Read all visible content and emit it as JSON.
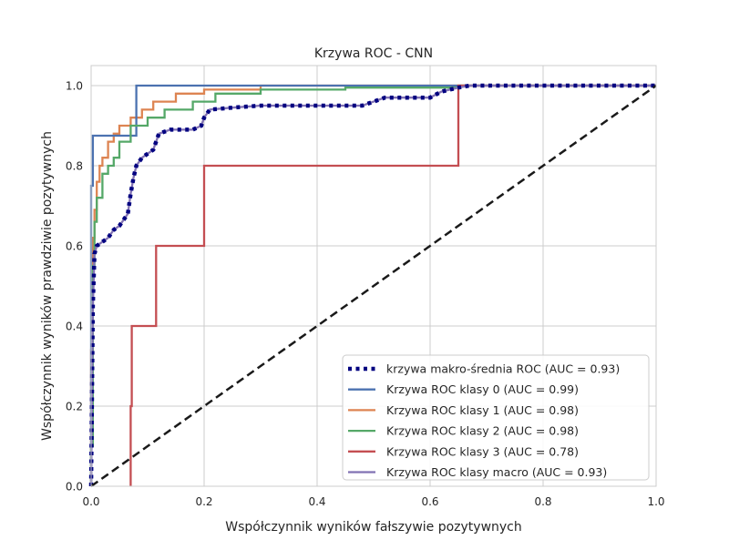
{
  "chart_data": {
    "type": "line",
    "title": "Krzywa ROC - CNN",
    "xlabel": "Współczynnik wyników fałszywie pozytywnych",
    "ylabel": "Współczynnik wyników prawdziwie pozytywnych",
    "xlim": [
      0.0,
      1.0
    ],
    "ylim": [
      0.0,
      1.05
    ],
    "xticks": [
      0.0,
      0.2,
      0.4,
      0.6,
      0.8,
      1.0
    ],
    "yticks": [
      0.0,
      0.2,
      0.4,
      0.6,
      0.8,
      1.0
    ],
    "xtick_labels": [
      "0.0",
      "0.2",
      "0.4",
      "0.6",
      "0.8",
      "1.0"
    ],
    "ytick_labels": [
      "0.0",
      "0.2",
      "0.4",
      "0.6",
      "0.8",
      "1.0"
    ],
    "grid": true,
    "legend_position": "lower-right",
    "series": [
      {
        "name": "krzywa makro-średnia ROC (AUC = 0.93)",
        "color": "#000080",
        "style": "dotted",
        "x": [
          0.0,
          0.003,
          0.006,
          0.01,
          0.02,
          0.03,
          0.04,
          0.05,
          0.06,
          0.065,
          0.07,
          0.075,
          0.08,
          0.09,
          0.1,
          0.11,
          0.115,
          0.12,
          0.14,
          0.16,
          0.18,
          0.195,
          0.2,
          0.21,
          0.25,
          0.3,
          0.35,
          0.4,
          0.48,
          0.5,
          0.52,
          0.55,
          0.6,
          0.62,
          0.65,
          0.67,
          0.75,
          0.85,
          0.9,
          1.0
        ],
        "y": [
          0.0,
          0.45,
          0.58,
          0.6,
          0.61,
          0.62,
          0.64,
          0.65,
          0.67,
          0.68,
          0.73,
          0.77,
          0.8,
          0.82,
          0.83,
          0.84,
          0.86,
          0.88,
          0.89,
          0.89,
          0.89,
          0.9,
          0.92,
          0.94,
          0.945,
          0.95,
          0.95,
          0.95,
          0.95,
          0.96,
          0.97,
          0.97,
          0.97,
          0.985,
          0.995,
          1.0,
          1.0,
          1.0,
          1.0,
          1.0
        ]
      },
      {
        "name": "Krzywa ROC klasy 0 (AUC = 0.99)",
        "color": "#4c72b0",
        "style": "solid",
        "x": [
          0.0,
          0.0,
          0.003,
          0.003,
          0.08,
          0.08,
          0.28,
          0.28,
          1.0
        ],
        "y": [
          0.0,
          0.75,
          0.75,
          0.875,
          0.875,
          1.0,
          1.0,
          1.0,
          1.0
        ]
      },
      {
        "name": "Krzywa ROC klasy 1 (AUC = 0.98)",
        "color": "#dd8452",
        "style": "solid",
        "x": [
          0.0,
          0.0,
          0.003,
          0.003,
          0.006,
          0.006,
          0.01,
          0.01,
          0.015,
          0.015,
          0.02,
          0.02,
          0.03,
          0.03,
          0.04,
          0.04,
          0.05,
          0.05,
          0.07,
          0.07,
          0.09,
          0.09,
          0.11,
          0.11,
          0.15,
          0.15,
          0.2,
          0.2,
          0.3,
          0.3,
          1.0
        ],
        "y": [
          0.0,
          0.34,
          0.34,
          0.62,
          0.62,
          0.69,
          0.69,
          0.76,
          0.76,
          0.8,
          0.8,
          0.82,
          0.82,
          0.86,
          0.86,
          0.88,
          0.88,
          0.9,
          0.9,
          0.92,
          0.92,
          0.94,
          0.94,
          0.96,
          0.96,
          0.98,
          0.98,
          0.99,
          0.99,
          1.0,
          1.0
        ]
      },
      {
        "name": "Krzywa ROC klasy 2 (AUC = 0.98)",
        "color": "#55a868",
        "style": "solid",
        "x": [
          0.0,
          0.0,
          0.003,
          0.003,
          0.006,
          0.006,
          0.01,
          0.01,
          0.02,
          0.02,
          0.03,
          0.03,
          0.04,
          0.04,
          0.05,
          0.05,
          0.07,
          0.07,
          0.1,
          0.1,
          0.13,
          0.13,
          0.18,
          0.18,
          0.22,
          0.22,
          0.3,
          0.3,
          0.45,
          0.45,
          0.65,
          0.65,
          1.0
        ],
        "y": [
          0.0,
          0.1,
          0.1,
          0.55,
          0.55,
          0.66,
          0.66,
          0.72,
          0.72,
          0.78,
          0.78,
          0.8,
          0.8,
          0.82,
          0.82,
          0.86,
          0.86,
          0.9,
          0.9,
          0.92,
          0.92,
          0.94,
          0.94,
          0.96,
          0.96,
          0.98,
          0.98,
          0.99,
          0.99,
          0.995,
          0.995,
          1.0,
          1.0
        ]
      },
      {
        "name": "Krzywa ROC klasy 3 (AUC = 0.78)",
        "color": "#c44e52",
        "style": "solid",
        "x": [
          0.07,
          0.07,
          0.072,
          0.072,
          0.115,
          0.115,
          0.2,
          0.2,
          0.65,
          0.65,
          1.0
        ],
        "y": [
          0.0,
          0.2,
          0.2,
          0.4,
          0.4,
          0.6,
          0.6,
          0.8,
          0.8,
          1.0,
          1.0
        ]
      },
      {
        "name": "Krzywa ROC klasy macro (AUC = 0.93)",
        "color": "#8172b3",
        "style": "solid",
        "x": [
          0.0,
          0.003,
          0.006,
          0.01,
          0.02,
          0.03,
          0.04,
          0.05,
          0.06,
          0.065,
          0.07,
          0.075,
          0.08,
          0.09,
          0.1,
          0.11,
          0.115,
          0.12,
          0.14,
          0.16,
          0.18,
          0.195,
          0.2,
          0.21,
          0.25,
          0.3,
          0.35,
          0.4,
          0.48,
          0.5,
          0.52,
          0.55,
          0.6,
          0.62,
          0.65,
          0.67,
          0.75,
          0.85,
          0.9,
          1.0
        ],
        "y": [
          0.0,
          0.45,
          0.58,
          0.6,
          0.61,
          0.62,
          0.64,
          0.65,
          0.67,
          0.68,
          0.73,
          0.77,
          0.8,
          0.82,
          0.83,
          0.84,
          0.86,
          0.88,
          0.89,
          0.89,
          0.89,
          0.9,
          0.92,
          0.94,
          0.945,
          0.95,
          0.95,
          0.95,
          0.95,
          0.96,
          0.97,
          0.97,
          0.97,
          0.985,
          0.995,
          1.0,
          1.0,
          1.0,
          1.0,
          1.0
        ]
      },
      {
        "name": "",
        "color": "#1a1a1a",
        "style": "dashed",
        "x": [
          0.0,
          1.0
        ],
        "y": [
          0.0,
          1.0
        ]
      }
    ]
  }
}
